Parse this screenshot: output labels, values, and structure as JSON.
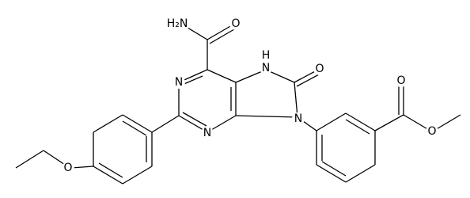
{
  "atoms": {
    "amide_n": "H₂N",
    "amide_o": "O",
    "n1": "N",
    "n3": "N",
    "n7": "N",
    "n7_h": "H",
    "c8_o": "O",
    "n9": "N",
    "ester_carbonyl_o": "O",
    "ester_o": "O",
    "ether_o": "O"
  }
}
